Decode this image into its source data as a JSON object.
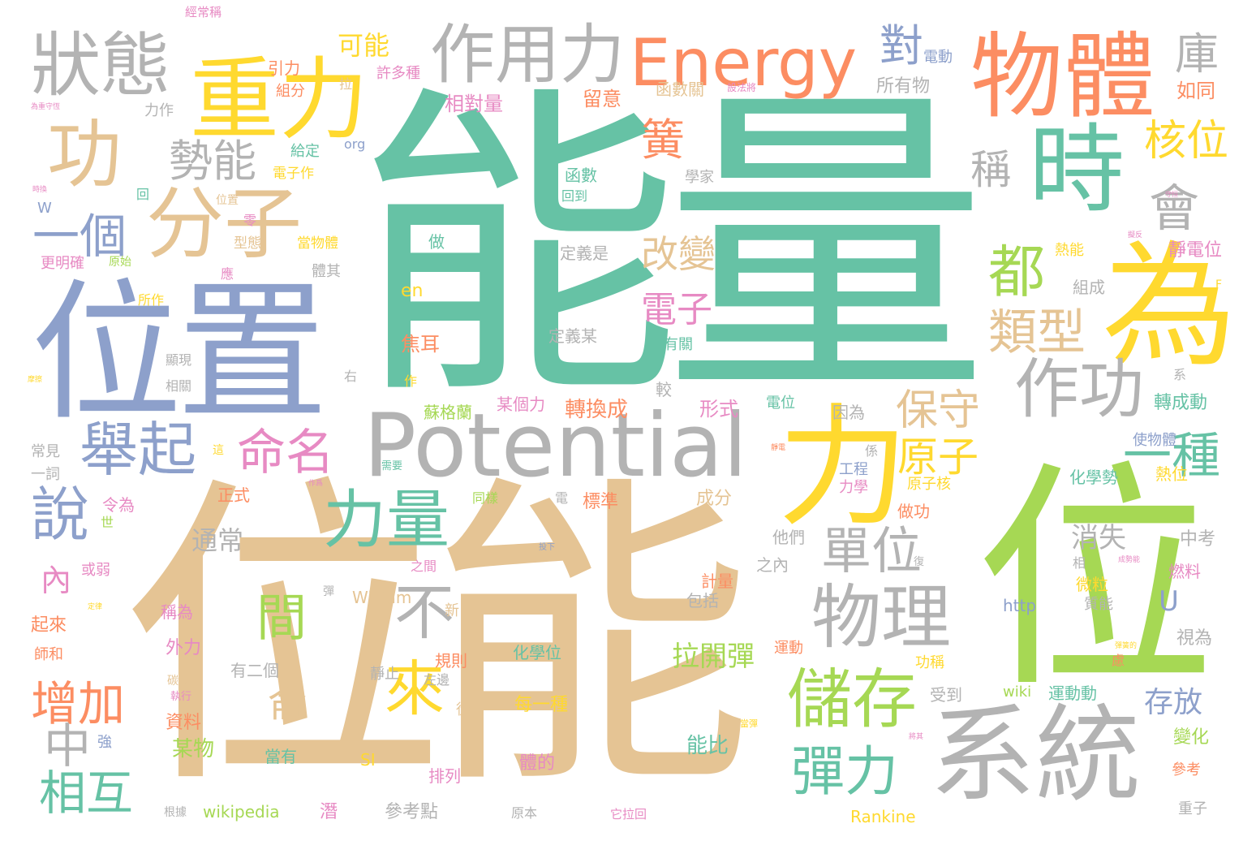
{
  "palette": {
    "teal": "#66c2a5",
    "orange": "#fc8d62",
    "blue": "#8da0cb",
    "pink": "#e78ac3",
    "lime": "#a6d854",
    "yellow": "#ffd92f",
    "tan": "#e5c494",
    "gray": "#b3b3b3"
  },
  "words": {
    "w001": "能量",
    "w002": "位能",
    "w003": "位置",
    "w004": "位",
    "w005": "Potential",
    "w006": "系統",
    "w007": "力",
    "w008": "為",
    "w009": "物體",
    "w010": "時",
    "w011": "Energy",
    "w012": "重力",
    "w013": "作用力",
    "w014": "狀態",
    "w015": "功",
    "w016": "分子",
    "w017": "舉起",
    "w018": "說",
    "w019": "儲存",
    "w020": "物理",
    "w021": "作功",
    "w022": "力量",
    "w023": "命名",
    "w024": "間",
    "w025": "彈力",
    "w026": "一個",
    "w027": "勢能",
    "w028": "都",
    "w029": "類型",
    "w030": "單位",
    "w031": "來",
    "w032": "保守",
    "w033": "一種",
    "w034": "會",
    "w035": "核位",
    "w036": "增加",
    "w037": "相互",
    "w038": "中",
    "w039": "簧",
    "w040": "對",
    "w041": "庫",
    "w042": "改變",
    "w043": "電子",
    "w044": "原子",
    "w045": "稱",
    "w046": "不",
    "w047": "侖",
    "w048": "存放",
    "w049": "拉開彈",
    "w050": "內",
    "w051": "通常",
    "w052": "消失",
    "w053": "U",
    "w054": "轉換成",
    "w055": "形式",
    "w056": "相對量",
    "w057": "留意",
    "w058": "可能",
    "w059": "函數關",
    "w060": "所有物",
    "w061": "電動",
    "w062": "許多種",
    "w063": "如同",
    "w064": "靜電位",
    "w065": "熱能",
    "w066": "定義是",
    "w067": "組成",
    "w068": "做",
    "w069": "焦耳",
    "w070": "en",
    "w071": "定義某",
    "w072": "有關",
    "w073": "較",
    "w074": "某個力",
    "w075": "蘇格蘭",
    "w076": "電位",
    "w077": "因為",
    "w078": "轉成動",
    "w079": "熱位",
    "w080": "使物體",
    "w081": "化學勢",
    "w082": "工程",
    "w083": "力學",
    "w084": "原子核",
    "w085": "成分",
    "w086": "標準",
    "w087": "做功",
    "w088": "正式",
    "w089": "令為",
    "w090": "同樣",
    "w091": "需要",
    "w092": "電",
    "w093": "他們",
    "w094": "之內",
    "w095": "中考",
    "w096": "燃料",
    "w097": "微粒",
    "w098": "質能",
    "w099": "計量",
    "w100": "包括",
    "w101": "William",
    "w102": "http",
    "w103": "化學位",
    "w104": "規則",
    "w105": "左邊",
    "w106": "靜止",
    "w107": "運動",
    "w108": "功稱",
    "w109": "視為",
    "w110": "每一種",
    "w111": "wiki",
    "w112": "運動動",
    "w113": "受到",
    "w114": "從",
    "w115": "體的",
    "w116": "能比",
    "w117": "當有",
    "w118": "排列",
    "w119": "變化",
    "w120": "參考",
    "w121": "SI",
    "w122": "wikipedia",
    "w123": "潛",
    "w124": "參考點",
    "w125": "原本",
    "w126": "它拉回",
    "w127": "重子",
    "w128": "Rankine",
    "w129": "某物",
    "w130": "資料",
    "w131": "外力",
    "w132": "有二個",
    "w133": "起來",
    "w134": "師和",
    "w135": "強",
    "w136": "稱為",
    "w137": "根據",
    "w138": "經常稱",
    "w139": "引力",
    "w140": "組分",
    "w141": "拉",
    "w142": "力作",
    "w143": "給定",
    "w144": "電子作",
    "w145": "org",
    "w146": "回",
    "w147": "W",
    "w148": "位置",
    "w149": "回到",
    "w150": "函數",
    "w151": "學家",
    "w152": "零",
    "w153": "型態",
    "w154": "當物體",
    "w155": "更明確",
    "w156": "原始",
    "w157": "應",
    "w158": "體其",
    "w159": "所作",
    "w160": "顯現",
    "w161": "相關",
    "w162": "右",
    "w163": "常見",
    "w164": "一詞",
    "w165": "這",
    "w166": "作",
    "w167": "係",
    "w168": "系",
    "w169": "或弱",
    "w170": "世",
    "w171": "相",
    "w172": "復",
    "w173": "新",
    "w174": "之間",
    "w175": "彈",
    "w176": "F",
    "w177": "慮",
    "w178": "設法將",
    "w179": "為重守恆",
    "w180": "時換",
    "w181": "守恒",
    "w182": "擬反",
    "w183": "摩擦",
    "w184": "靜電",
    "w185": "作爲",
    "w186": "投下",
    "w187": "成勢能",
    "w188": "定律",
    "w189": "彈簧的",
    "w190": "當彈",
    "w191": "將其",
    "w192": "碳物",
    "w193": "執行",
    "w194": "潛",
    "w195": "可能"
  }
}
